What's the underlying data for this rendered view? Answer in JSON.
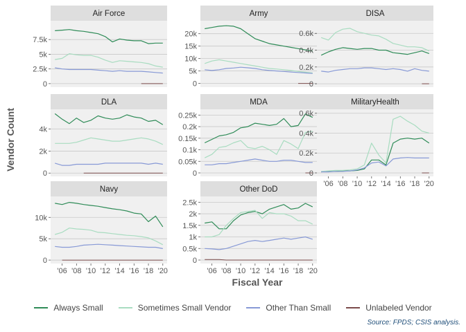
{
  "chart_data": {
    "type": "line",
    "layout": "facet-grid 3x3, free y scales",
    "xlabel": "Fiscal Year",
    "ylabel": "Vendor Count",
    "source": "Source: FPDS; CSIS analysis.",
    "legend_position": "bottom",
    "x_tick_labels": [
      "'06",
      "'08",
      "'10",
      "'12",
      "'14",
      "'16",
      "'18",
      "'20"
    ],
    "x_tick_values": [
      2006,
      2008,
      2010,
      2012,
      2014,
      2016,
      2018,
      2020
    ],
    "xlim": [
      2004.4,
      2020.6
    ],
    "x": [
      2005,
      2006,
      2007,
      2008,
      2009,
      2010,
      2011,
      2012,
      2013,
      2014,
      2015,
      2016,
      2017,
      2018,
      2019,
      2020
    ],
    "series_styles": [
      {
        "name": "Always Small",
        "color": "#2e8b57"
      },
      {
        "name": "Sometimes Small Vendor",
        "color": "#a8dcc0"
      },
      {
        "name": "Other Than Small",
        "color": "#8799d6"
      },
      {
        "name": "Unlabeled Vendor",
        "color": "#7a4a4a"
      }
    ],
    "panels": [
      {
        "title": "Air Force",
        "ylim": [
          -600,
          10700
        ],
        "yticks": [
          0,
          2500,
          5000,
          7500
        ],
        "ytick_labels": [
          "0",
          "2.5k",
          "5k",
          "7.5k"
        ],
        "series": [
          {
            "name": "Always Small",
            "values": [
              9000,
              9100,
              9200,
              9000,
              8900,
              8700,
              8500,
              8000,
              7100,
              7600,
              7400,
              7300,
              7300,
              6800,
              6900,
              6900
            ]
          },
          {
            "name": "Sometimes Small Vendor",
            "values": [
              4100,
              4300,
              5100,
              4900,
              4800,
              4800,
              4500,
              4000,
              3600,
              3900,
              3800,
              3700,
              3600,
              3400,
              3000,
              2800
            ]
          },
          {
            "name": "Other Than Small",
            "values": [
              2700,
              2500,
              2400,
              2400,
              2400,
              2400,
              2300,
              2200,
              2100,
              2200,
              2100,
              2100,
              2100,
              2000,
              1900,
              1800
            ]
          },
          {
            "name": "Unlabeled Vendor",
            "values": [
              null,
              null,
              null,
              null,
              null,
              null,
              null,
              null,
              null,
              null,
              null,
              null,
              0,
              0,
              0,
              0
            ]
          }
        ]
      },
      {
        "title": "Army",
        "ylim": [
          -1500,
          25200
        ],
        "yticks": [
          0,
          5000,
          10000,
          15000,
          20000
        ],
        "ytick_labels": [
          "0",
          "5k",
          "10k",
          "15k",
          "20k"
        ],
        "series": [
          {
            "name": "Always Small",
            "values": [
              22000,
              22500,
              23000,
              23200,
              23000,
              22000,
              20000,
              18000,
              17000,
              16000,
              15500,
              15000,
              14500,
              14000,
              13500,
              13000
            ]
          },
          {
            "name": "Sometimes Small Vendor",
            "values": [
              8000,
              9000,
              9500,
              9000,
              8500,
              8000,
              7500,
              7000,
              6500,
              6000,
              5800,
              5500,
              5200,
              4800,
              4500,
              4200
            ]
          },
          {
            "name": "Other Than Small",
            "values": [
              5500,
              5200,
              5500,
              6000,
              6200,
              6500,
              6300,
              6000,
              5500,
              5200,
              5000,
              4800,
              4600,
              4400,
              4200,
              4000
            ]
          },
          {
            "name": "Unlabeled Vendor",
            "values": [
              null,
              null,
              null,
              null,
              null,
              null,
              null,
              null,
              null,
              null,
              null,
              null,
              null,
              0,
              0,
              0
            ]
          }
        ]
      },
      {
        "title": "DISA",
        "ylim": [
          -40,
          750
        ],
        "yticks": [
          0,
          200,
          400,
          600
        ],
        "ytick_labels": [
          "0",
          "0.2k",
          "0.4k",
          "0.6k"
        ],
        "series": [
          {
            "name": "Always Small",
            "values": [
              340,
              380,
              410,
              430,
              420,
              410,
              420,
              420,
              400,
              400,
              370,
              360,
              350,
              370,
              390,
              360
            ]
          },
          {
            "name": "Sometimes Small Vendor",
            "values": [
              550,
              520,
              610,
              650,
              660,
              620,
              600,
              580,
              570,
              530,
              480,
              460,
              440,
              440,
              430,
              390
            ]
          },
          {
            "name": "Other Than Small",
            "values": [
              150,
              140,
              160,
              170,
              180,
              180,
              190,
              190,
              180,
              170,
              180,
              170,
              150,
              180,
              160,
              150
            ]
          },
          {
            "name": "Unlabeled Vendor",
            "values": [
              null,
              null,
              null,
              null,
              null,
              null,
              null,
              null,
              null,
              null,
              null,
              null,
              null,
              null,
              0,
              0
            ]
          }
        ]
      },
      {
        "title": "DLA",
        "ylim": [
          -300,
          5800
        ],
        "yticks": [
          0,
          2000,
          4000
        ],
        "ytick_labels": [
          "0",
          "2k",
          "4k"
        ],
        "series": [
          {
            "name": "Always Small",
            "values": [
              5400,
              4900,
              4500,
              5000,
              4600,
              4800,
              5200,
              5000,
              4900,
              5000,
              5300,
              5100,
              5000,
              4700,
              4800,
              4400
            ]
          },
          {
            "name": "Sometimes Small Vendor",
            "values": [
              2700,
              2700,
              2700,
              2800,
              3000,
              3200,
              3100,
              3000,
              2900,
              2900,
              3000,
              3100,
              3200,
              3100,
              2900,
              2600
            ]
          },
          {
            "name": "Other Than Small",
            "values": [
              900,
              700,
              700,
              800,
              800,
              800,
              800,
              900,
              900,
              900,
              900,
              900,
              900,
              800,
              900,
              800
            ]
          },
          {
            "name": "Unlabeled Vendor",
            "values": [
              null,
              null,
              null,
              null,
              0,
              0,
              0,
              0,
              0,
              0,
              0,
              0,
              0,
              0,
              0,
              0
            ]
          }
        ]
      },
      {
        "title": "MDA",
        "ylim": [
          -15,
          275
        ],
        "yticks": [
          0,
          50,
          100,
          150,
          200,
          250
        ],
        "ytick_labels": [
          "0",
          "0.05k",
          "0.1k",
          "0.15k",
          "0.2k",
          "0.25k"
        ],
        "series": [
          {
            "name": "Always Small",
            "values": [
              130,
              145,
              160,
              165,
              175,
              195,
              200,
              215,
              210,
              205,
              210,
              235,
              200,
              205,
              255,
              240
            ]
          },
          {
            "name": "Sometimes Small Vendor",
            "values": [
              65,
              80,
              110,
              115,
              130,
              140,
              110,
              105,
              115,
              100,
              80,
              140,
              125,
              105,
              175,
              180
            ]
          },
          {
            "name": "Other Than Small",
            "values": [
              35,
              35,
              40,
              40,
              45,
              50,
              55,
              60,
              55,
              50,
              50,
              55,
              55,
              50,
              45,
              45
            ]
          },
          {
            "name": "Unlabeled Vendor",
            "values": [
              null,
              null,
              null,
              null,
              null,
              null,
              null,
              null,
              null,
              null,
              null,
              null,
              null,
              null,
              0,
              0
            ]
          }
        ]
      },
      {
        "title": "MilitaryHealth",
        "ylim": [
          -35,
          640
        ],
        "yticks": [
          0,
          200,
          400,
          600
        ],
        "ytick_labels": [
          "0",
          "0.2k",
          "0.4k",
          "0.6k"
        ],
        "series": [
          {
            "name": "Always Small",
            "values": [
              10,
              15,
              15,
              20,
              20,
              25,
              40,
              130,
              130,
              80,
              300,
              340,
              350,
              340,
              350,
              300
            ]
          },
          {
            "name": "Sometimes Small Vendor",
            "values": [
              15,
              20,
              25,
              25,
              30,
              40,
              80,
              300,
              180,
              100,
              540,
              570,
              520,
              480,
              420,
              400
            ]
          },
          {
            "name": "Other Than Small",
            "values": [
              10,
              10,
              15,
              15,
              20,
              30,
              50,
              100,
              110,
              70,
              140,
              150,
              155,
              150,
              150,
              150
            ]
          },
          {
            "name": "Unlabeled Vendor",
            "values": [
              null,
              null,
              null,
              null,
              null,
              null,
              null,
              null,
              null,
              null,
              null,
              null,
              null,
              null,
              0,
              0
            ]
          }
        ]
      },
      {
        "title": "Navy",
        "ylim": [
          -800,
          14900
        ],
        "yticks": [
          0,
          5000,
          10000
        ],
        "ytick_labels": [
          "0",
          "5k",
          "10k"
        ],
        "series": [
          {
            "name": "Always Small",
            "values": [
              13300,
              13000,
              13500,
              13300,
              13000,
              12800,
              12600,
              12300,
              12000,
              11800,
              11500,
              11000,
              10800,
              9000,
              10300,
              7800
            ]
          },
          {
            "name": "Sometimes Small Vendor",
            "values": [
              6000,
              6500,
              7500,
              7300,
              7200,
              7000,
              6500,
              6400,
              6200,
              6000,
              5800,
              5700,
              5500,
              5200,
              4500,
              3600
            ]
          },
          {
            "name": "Other Than Small",
            "values": [
              3200,
              3000,
              3000,
              3200,
              3500,
              3600,
              3700,
              3600,
              3500,
              3400,
              3300,
              3200,
              3100,
              3000,
              3000,
              2700
            ]
          },
          {
            "name": "Unlabeled Vendor",
            "values": [
              null,
              0,
              0,
              0,
              0,
              0,
              0,
              0,
              0,
              0,
              0,
              0,
              0,
              0,
              0,
              0
            ]
          }
        ]
      },
      {
        "title": "Other DoD",
        "ylim": [
          -150,
          2750
        ],
        "yticks": [
          0,
          500,
          1000,
          1500,
          2000,
          2500
        ],
        "ytick_labels": [
          "0",
          "0.5k",
          "1k",
          "1.5k",
          "2k",
          "2.5k"
        ],
        "series": [
          {
            "name": "Always Small",
            "values": [
              1600,
              1650,
              1350,
              1350,
              1700,
              1950,
              2050,
              2100,
              2000,
              2200,
              2300,
              2400,
              2200,
              2250,
              2450,
              2300
            ]
          },
          {
            "name": "Sometimes Small Vendor",
            "values": [
              1000,
              1000,
              1100,
              1500,
              1800,
              2050,
              2100,
              2150,
              1800,
              2050,
              2000,
              2000,
              1900,
              1700,
              1700,
              1550
            ]
          },
          {
            "name": "Other Than Small",
            "values": [
              500,
              480,
              450,
              500,
              600,
              700,
              800,
              850,
              800,
              850,
              900,
              950,
              900,
              950,
              1000,
              900
            ]
          },
          {
            "name": "Unlabeled Vendor",
            "values": [
              20,
              20,
              20,
              0,
              0,
              0,
              0,
              0,
              0,
              0,
              0,
              0,
              0,
              0,
              0,
              0
            ]
          }
        ]
      }
    ]
  }
}
